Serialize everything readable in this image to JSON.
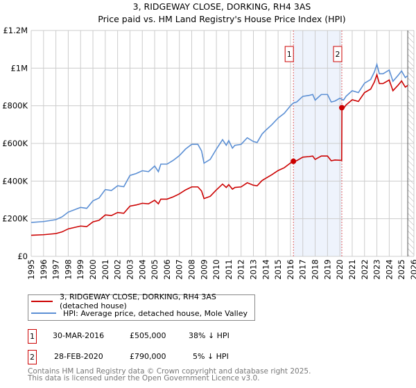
{
  "chart_data": {
    "type": "line",
    "title": "3, RIDGEWAY CLOSE, DORKING, RH4 3AS",
    "subtitle": "Price paid vs. HM Land Registry's House Price Index (HPI)",
    "xlabel": "",
    "ylabel": "",
    "xlim": [
      1995,
      2026
    ],
    "ylim": [
      0,
      1200000
    ],
    "x_ticks": [
      "1995",
      "1996",
      "1997",
      "1998",
      "1999",
      "2000",
      "2001",
      "2002",
      "2003",
      "2004",
      "2005",
      "2006",
      "2007",
      "2008",
      "2009",
      "2010",
      "2011",
      "2012",
      "2013",
      "2014",
      "2015",
      "2016",
      "2017",
      "2018",
      "2019",
      "2020",
      "2021",
      "2022",
      "2023",
      "2024",
      "2025",
      "2026"
    ],
    "y_ticks": [
      {
        "v": 0,
        "label": "£0"
      },
      {
        "v": 200000,
        "label": "£200K"
      },
      {
        "v": 400000,
        "label": "£400K"
      },
      {
        "v": 600000,
        "label": "£600K"
      },
      {
        "v": 800000,
        "label": "£800K"
      },
      {
        "v": 1000000,
        "label": "£1M"
      },
      {
        "v": 1200000,
        "label": "£1.2M"
      }
    ],
    "grid": true,
    "series": [
      {
        "name": "3, RIDGEWAY CLOSE, DORKING, RH4 3AS (detached house)",
        "color": "#cc0000",
        "points": [
          [
            1995,
            112
          ],
          [
            1996,
            115
          ],
          [
            1997,
            121
          ],
          [
            1997.5,
            130
          ],
          [
            1998,
            146
          ],
          [
            1999,
            161
          ],
          [
            1999.5,
            158
          ],
          [
            2000,
            183
          ],
          [
            2000.5,
            192
          ],
          [
            2001,
            220
          ],
          [
            2001.5,
            217
          ],
          [
            2002,
            233
          ],
          [
            2002.5,
            229
          ],
          [
            2003,
            267
          ],
          [
            2003.5,
            273
          ],
          [
            2004,
            282
          ],
          [
            2004.5,
            279
          ],
          [
            2005,
            298
          ],
          [
            2005.3,
            279
          ],
          [
            2005.5,
            304
          ],
          [
            2006,
            304
          ],
          [
            2006.5,
            316
          ],
          [
            2007,
            332
          ],
          [
            2007.5,
            353
          ],
          [
            2008,
            369
          ],
          [
            2008.5,
            369
          ],
          [
            2008.8,
            347
          ],
          [
            2009,
            307
          ],
          [
            2009.5,
            319
          ],
          [
            2010,
            353
          ],
          [
            2010.5,
            384
          ],
          [
            2010.8,
            366
          ],
          [
            2011,
            381
          ],
          [
            2011.3,
            357
          ],
          [
            2011.5,
            366
          ],
          [
            2012,
            369
          ],
          [
            2012.5,
            391
          ],
          [
            2013,
            378
          ],
          [
            2013.3,
            375
          ],
          [
            2013.7,
            403
          ],
          [
            2014,
            415
          ],
          [
            2014.5,
            434
          ],
          [
            2015,
            456
          ],
          [
            2015.5,
            471
          ],
          [
            2016,
            496
          ],
          [
            2016.24,
            505
          ],
          [
            2016.5,
            508
          ],
          [
            2017,
            527
          ],
          [
            2017.5,
            530
          ],
          [
            2017.8,
            533
          ],
          [
            2018,
            515
          ],
          [
            2018.5,
            533
          ],
          [
            2019,
            533
          ],
          [
            2019.3,
            508
          ],
          [
            2019.6,
            512
          ],
          [
            2020.15,
            510
          ],
          [
            2020.17,
            790
          ],
          [
            2020.3,
            785
          ],
          [
            2020.5,
            804
          ],
          [
            2021,
            832
          ],
          [
            2021.5,
            823
          ],
          [
            2022,
            870
          ],
          [
            2022.5,
            889
          ],
          [
            2022.8,
            927
          ],
          [
            2023,
            965
          ],
          [
            2023.2,
            918
          ],
          [
            2023.5,
            918
          ],
          [
            2024,
            937
          ],
          [
            2024.3,
            880
          ],
          [
            2024.7,
            908
          ],
          [
            2025,
            932
          ],
          [
            2025.3,
            899
          ],
          [
            2025.5,
            908
          ]
        ]
      },
      {
        "name": "HPI: Average price, detached house, Mole Valley",
        "color": "#5b8fd4",
        "points": [
          [
            1995,
            180
          ],
          [
            1996,
            185
          ],
          [
            1997,
            195
          ],
          [
            1997.5,
            210
          ],
          [
            1998,
            235
          ],
          [
            1999,
            260
          ],
          [
            1999.5,
            255
          ],
          [
            2000,
            295
          ],
          [
            2000.5,
            310
          ],
          [
            2001,
            355
          ],
          [
            2001.5,
            350
          ],
          [
            2002,
            375
          ],
          [
            2002.5,
            370
          ],
          [
            2003,
            430
          ],
          [
            2003.5,
            440
          ],
          [
            2004,
            455
          ],
          [
            2004.5,
            450
          ],
          [
            2005,
            480
          ],
          [
            2005.3,
            450
          ],
          [
            2005.5,
            490
          ],
          [
            2006,
            490
          ],
          [
            2006.5,
            510
          ],
          [
            2007,
            535
          ],
          [
            2007.5,
            570
          ],
          [
            2008,
            595
          ],
          [
            2008.5,
            595
          ],
          [
            2008.8,
            560
          ],
          [
            2009,
            495
          ],
          [
            2009.5,
            515
          ],
          [
            2010,
            570
          ],
          [
            2010.5,
            620
          ],
          [
            2010.8,
            590
          ],
          [
            2011,
            615
          ],
          [
            2011.3,
            575
          ],
          [
            2011.5,
            590
          ],
          [
            2012,
            595
          ],
          [
            2012.5,
            630
          ],
          [
            2013,
            610
          ],
          [
            2013.3,
            605
          ],
          [
            2013.7,
            650
          ],
          [
            2014,
            670
          ],
          [
            2014.5,
            700
          ],
          [
            2015,
            735
          ],
          [
            2015.5,
            760
          ],
          [
            2016,
            800
          ],
          [
            2016.24,
            815
          ],
          [
            2016.5,
            820
          ],
          [
            2017,
            850
          ],
          [
            2017.5,
            855
          ],
          [
            2017.8,
            860
          ],
          [
            2018,
            830
          ],
          [
            2018.5,
            860
          ],
          [
            2019,
            860
          ],
          [
            2019.3,
            820
          ],
          [
            2019.6,
            825
          ],
          [
            2020,
            840
          ],
          [
            2020.3,
            830
          ],
          [
            2020.5,
            850
          ],
          [
            2021,
            880
          ],
          [
            2021.5,
            870
          ],
          [
            2022,
            920
          ],
          [
            2022.5,
            940
          ],
          [
            2022.8,
            980
          ],
          [
            2023,
            1020
          ],
          [
            2023.2,
            970
          ],
          [
            2023.5,
            970
          ],
          [
            2024,
            990
          ],
          [
            2024.3,
            930
          ],
          [
            2024.7,
            960
          ],
          [
            2025,
            985
          ],
          [
            2025.3,
            950
          ],
          [
            2025.5,
            960
          ]
        ]
      }
    ],
    "y_unit_multiplier": 1000,
    "sales": [
      {
        "label": "1",
        "x": 2016.24,
        "price": 505000,
        "date": "30-MAR-2016",
        "price_text": "£505,000",
        "hpi_text": "38% ↓ HPI"
      },
      {
        "label": "2",
        "x": 2020.16,
        "price": 790000,
        "date": "28-FEB-2020",
        "price_text": "£790,000",
        "hpi_text": "5% ↓ HPI"
      }
    ],
    "forecast_start": 2025.5
  },
  "footer": {
    "line1": "Contains HM Land Registry data © Crown copyright and database right 2025.",
    "line2": "This data is licensed under the Open Government Licence v3.0."
  }
}
